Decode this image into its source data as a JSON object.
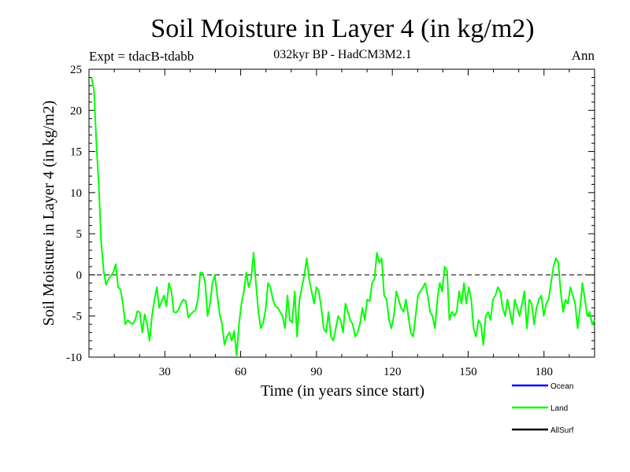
{
  "chart_data": {
    "type": "line",
    "title": "Soil Moisture in Layer 4 (in kg/m2)",
    "subtitle": "032kyr BP - HadCM3M2.1",
    "experiment": "Expt = tdacB-tdabb",
    "season": "Ann",
    "xlabel": "Time (in years since start)",
    "ylabel": "Soil Moisture in Layer 4 (in kg/m2)",
    "xlim": [
      0,
      200
    ],
    "ylim": [
      -10,
      25
    ],
    "x_ticks": [
      30,
      60,
      90,
      120,
      150,
      180
    ],
    "x_tick_labels": [
      "30",
      "60",
      "90",
      "120",
      "150",
      "180"
    ],
    "y_ticks": [
      -10,
      -5,
      0,
      5,
      10,
      15,
      20,
      25
    ],
    "y_tick_labels": [
      "-10",
      "-5",
      "0",
      "5",
      "10",
      "15",
      "20",
      "25"
    ],
    "reference_line": 0,
    "legend": [
      {
        "name": "Ocean",
        "color": "#0000ff"
      },
      {
        "name": "Land",
        "color": "#00ff00"
      },
      {
        "name": "AllSurf",
        "color": "#000000"
      }
    ],
    "series": [
      {
        "name": "Land",
        "color": "#00ff00",
        "values": [
          24.0,
          22.5,
          16.0,
          11.0,
          4.0,
          0.5,
          -1.2,
          -0.5,
          -0.1,
          0.3,
          1.3,
          -1.5,
          -1.8,
          -3.5,
          -6.0,
          -5.5,
          -5.8,
          -6.0,
          -5.5,
          -4.4,
          -4.6,
          -7.0,
          -4.8,
          -6.0,
          -8.0,
          -5.0,
          -3.0,
          -1.5,
          -4.0,
          -3.2,
          -2.5,
          -3.8,
          -1.0,
          -2.0,
          -4.5,
          -4.6,
          -4.2,
          -3.5,
          -3.0,
          -3.2,
          -5.2,
          -4.8,
          -4.5,
          -4.3,
          -3.0,
          0.3,
          0.2,
          -1.0,
          -5.0,
          -3.5,
          -1.0,
          0.0,
          -2.5,
          -4.8,
          -6.0,
          -8.5,
          -7.5,
          -7.0,
          -8.0,
          -6.8,
          -9.8,
          -6.0,
          -3.5,
          -2.0,
          0.3,
          -1.5,
          -0.5,
          2.7,
          -1.0,
          -4.5,
          -6.5,
          -5.8,
          -4.2,
          -1.0,
          -1.5,
          -3.0,
          -3.8,
          -4.0,
          -4.5,
          -5.0,
          -6.5,
          -2.5,
          -5.5,
          -5.8,
          -2.0,
          -7.5,
          -3.0,
          -1.5,
          0.0,
          2.0,
          -0.5,
          -2.0,
          -3.5,
          -1.5,
          -2.0,
          -4.0,
          -6.5,
          -7.0,
          -4.5,
          -7.5,
          -8.0,
          -6.5,
          -5.0,
          -5.5,
          -7.0,
          -3.5,
          -4.5,
          -5.5,
          -6.0,
          -7.5,
          -7.0,
          -6.0,
          -4.0,
          -5.5,
          -3.0,
          -3.2,
          -1.0,
          -0.5,
          2.7,
          1.5,
          2.0,
          -2.5,
          -3.0,
          -5.5,
          -6.5,
          -5.0,
          -2.0,
          -3.0,
          -4.0,
          -4.5,
          -3.0,
          -5.0,
          -7.0,
          -7.5,
          -5.0,
          -2.5,
          -2.0,
          -1.5,
          -1.0,
          -2.5,
          -4.5,
          -5.0,
          -6.5,
          -3.0,
          -1.0,
          -2.0,
          1.0,
          0.5,
          -5.5,
          -4.5,
          -5.0,
          -4.5,
          -2.0,
          -3.5,
          -1.0,
          -3.5,
          -1.5,
          -3.0,
          -6.5,
          -7.5,
          -5.5,
          -6.0,
          -8.5,
          -5.0,
          -4.5,
          -5.5,
          -3.0,
          -2.5,
          -1.5,
          -2.0,
          -4.0,
          -5.0,
          -3.0,
          -4.5,
          -6.0,
          -3.0,
          -4.0,
          -5.0,
          -3.5,
          -2.0,
          -6.5,
          -3.0,
          -3.5,
          -6.0,
          -4.0,
          -3.0,
          -2.5,
          -5.0,
          -3.5,
          -3.0,
          -1.0,
          1.0,
          2.0,
          1.5,
          -2.0,
          -4.5,
          -3.0,
          -3.5,
          -1.5,
          -2.5,
          -3.5,
          -6.5,
          -4.0,
          -1.0,
          -3.0,
          -5.0,
          -4.5,
          -6.0,
          -5.5
        ]
      }
    ]
  }
}
